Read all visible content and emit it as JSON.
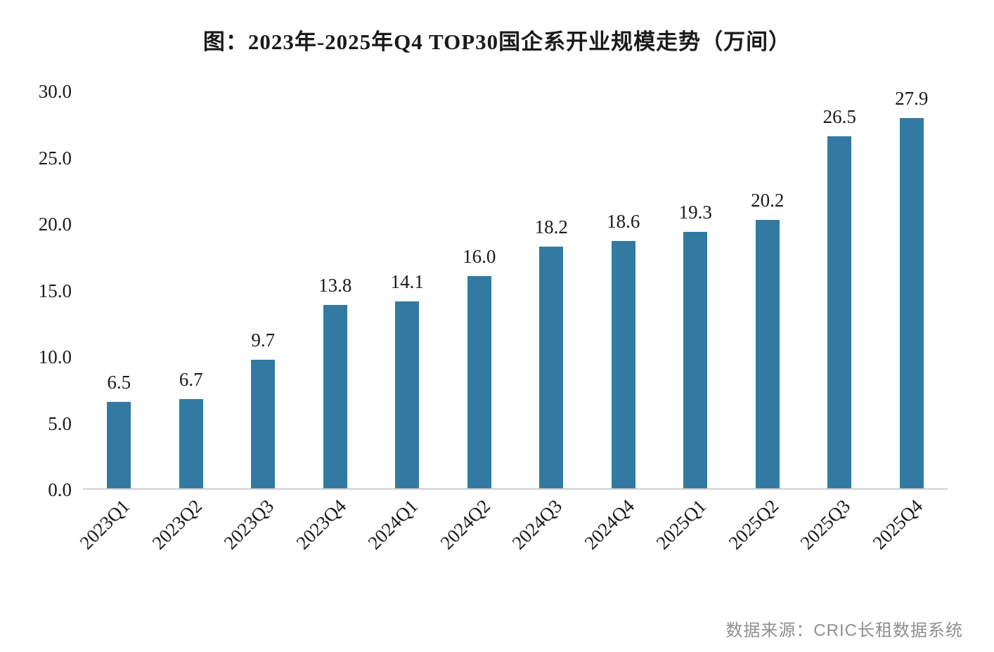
{
  "title": "图：2023年-2025年Q4 TOP30国企系开业规模走势（万间）",
  "source": "数据来源：CRIC长租数据系统",
  "colors": {
    "bar": "#337aa2",
    "axis_line": "#cfcfcf",
    "text": "#1a1a1a",
    "source_text": "#8f8f8f",
    "background": "#ffffff"
  },
  "chart_data": {
    "type": "bar",
    "title": "图：2023年-2025年Q4 TOP30国企系开业规模走势（万间）",
    "categories": [
      "2023Q1",
      "2023Q2",
      "2023Q3",
      "2023Q4",
      "2024Q1",
      "2024Q2",
      "2024Q3",
      "2024Q4",
      "2025Q1",
      "2025Q2",
      "2025Q3",
      "2025Q4"
    ],
    "values": [
      6.5,
      6.7,
      9.7,
      13.8,
      14.1,
      16.0,
      18.2,
      18.6,
      19.3,
      20.2,
      26.5,
      27.9
    ],
    "data_labels": [
      "6.5",
      "6.7",
      "9.7",
      "13.8",
      "14.1",
      "16.0",
      "18.2",
      "18.6",
      "19.3",
      "20.2",
      "26.5",
      "27.9"
    ],
    "xlabel": "",
    "ylabel": "",
    "ylim": [
      0,
      30
    ],
    "yticks": [
      0,
      5,
      10,
      15,
      20,
      25,
      30
    ],
    "ytick_labels": [
      "0.0",
      "5.0",
      "10.0",
      "15.0",
      "20.0",
      "25.0",
      "30.0"
    ],
    "grid": false,
    "legend_position": "none",
    "source": "数据来源：CRIC长租数据系统"
  }
}
